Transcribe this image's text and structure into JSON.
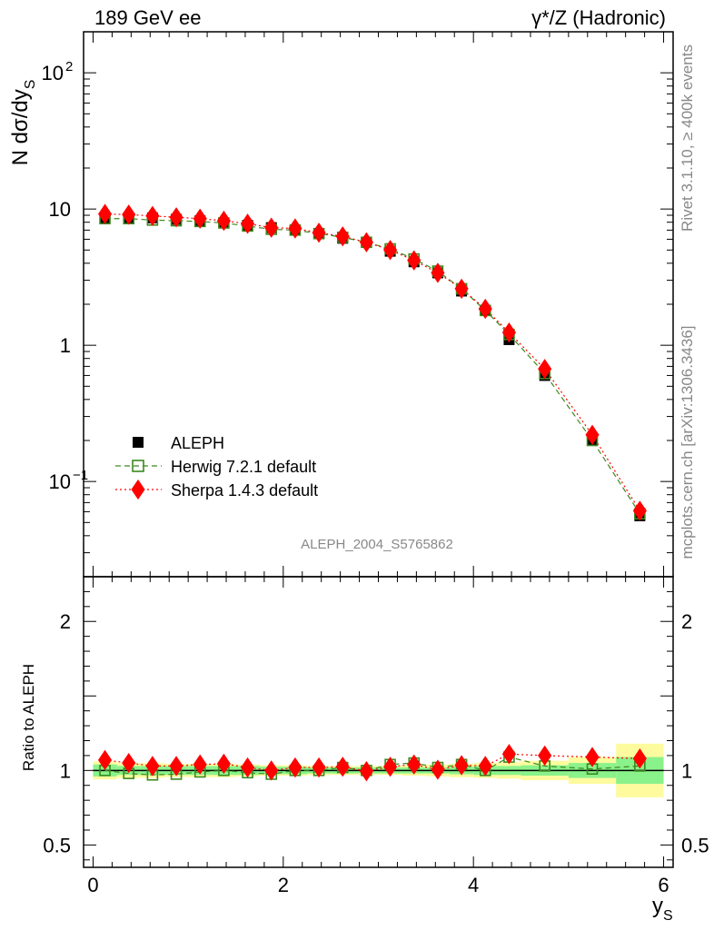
{
  "header": {
    "left_label": "189 GeV ee",
    "right_label": "γ*/Z (Hadronic)"
  },
  "side": {
    "version_text": "Rivet 3.1.10, ≥ 400k events",
    "source_text": "mcplots.cern.ch [arXiv:1306.3436]"
  },
  "watermark": "ALEPH_2004_S5765862",
  "chart_data": [
    {
      "type": "scatter",
      "panel": "main",
      "ylabel": "N dσ/dy_S",
      "yscale": "log",
      "ylim": [
        0.02,
        200
      ],
      "xlim": [
        -0.1,
        6.1
      ],
      "ytick_labels": [
        "10^-1",
        "1",
        "10",
        "10^2"
      ],
      "x": [
        0.125,
        0.375,
        0.625,
        0.875,
        1.125,
        1.375,
        1.625,
        1.875,
        2.125,
        2.375,
        2.625,
        2.875,
        3.125,
        3.375,
        3.625,
        3.875,
        4.125,
        4.375,
        4.75,
        5.25,
        5.75
      ],
      "series": [
        {
          "name": "ALEPH",
          "marker": "square",
          "color": "#000000",
          "values": [
            8.5,
            8.6,
            8.6,
            8.4,
            8.2,
            7.9,
            7.6,
            7.3,
            7.0,
            6.6,
            6.1,
            5.7,
            4.9,
            4.1,
            3.4,
            2.5,
            1.8,
            1.1,
            0.6,
            0.2,
            0.056
          ]
        },
        {
          "name": "Herwig 7.2.1 default",
          "marker": "open-square",
          "color": "#3a8a1e",
          "line": "dashed",
          "values": [
            8.5,
            8.5,
            8.3,
            8.2,
            8.1,
            7.9,
            7.5,
            7.1,
            7.0,
            6.6,
            6.2,
            5.7,
            5.1,
            4.3,
            3.5,
            2.6,
            1.8,
            1.2,
            0.62,
            0.2,
            0.058
          ]
        },
        {
          "name": "Sherpa 1.4.3 default",
          "marker": "diamond",
          "color": "#ff0000",
          "line": "dotted",
          "values": [
            9.2,
            9.1,
            8.9,
            8.7,
            8.5,
            8.2,
            7.8,
            7.3,
            7.2,
            6.7,
            6.3,
            5.7,
            5.0,
            4.2,
            3.4,
            2.6,
            1.85,
            1.24,
            0.67,
            0.22,
            0.061
          ]
        }
      ],
      "legend": {
        "placement": "bottom-left"
      }
    },
    {
      "type": "scatter",
      "panel": "ratio",
      "ylabel": "Ratio to ALEPH",
      "xlabel": "y_S",
      "ylim": [
        0.35,
        2.3
      ],
      "xlim": [
        -0.1,
        6.1
      ],
      "yticks": [
        0.5,
        1,
        2
      ],
      "ytick_labels": [
        "0.5",
        "1",
        "2"
      ],
      "xticks": [
        0,
        2,
        4,
        6
      ],
      "xtick_labels": [
        "0",
        "2",
        "4",
        "6"
      ],
      "bands": {
        "edges": [
          0,
          0.25,
          0.5,
          0.75,
          1.0,
          1.25,
          1.5,
          1.75,
          2.0,
          2.25,
          2.5,
          2.75,
          3.0,
          3.25,
          3.5,
          3.75,
          4.0,
          4.25,
          4.5,
          5.0,
          5.5,
          6.0
        ],
        "inner": [
          0.04,
          0.03,
          0.03,
          0.03,
          0.03,
          0.03,
          0.03,
          0.025,
          0.025,
          0.02,
          0.02,
          0.02,
          0.02,
          0.02,
          0.02,
          0.025,
          0.03,
          0.03,
          0.035,
          0.05,
          0.09
        ],
        "outer": [
          0.06,
          0.05,
          0.05,
          0.045,
          0.045,
          0.045,
          0.04,
          0.035,
          0.035,
          0.03,
          0.03,
          0.03,
          0.03,
          0.035,
          0.04,
          0.045,
          0.05,
          0.055,
          0.065,
          0.09,
          0.18
        ],
        "inner_color": "#8af28a",
        "outer_color": "#fdfb9e"
      },
      "series": [
        {
          "name": "Herwig 7.2.1 default",
          "marker": "open-square",
          "color": "#3a8a1e",
          "line": "dashed",
          "values": [
            1.0,
            0.98,
            0.97,
            0.975,
            0.99,
            1.0,
            0.985,
            0.975,
            1.0,
            1.0,
            1.02,
            1.0,
            1.04,
            1.05,
            1.02,
            1.04,
            1.0,
            1.09,
            1.03,
            1.01,
            1.03
          ]
        },
        {
          "name": "Sherpa 1.4.3 default",
          "marker": "diamond",
          "color": "#ff0000",
          "line": "dotted",
          "values": [
            1.07,
            1.05,
            1.03,
            1.03,
            1.04,
            1.045,
            1.02,
            1.0,
            1.02,
            1.02,
            1.025,
            0.995,
            1.025,
            1.04,
            1.005,
            1.035,
            1.03,
            1.11,
            1.1,
            1.09,
            1.08
          ]
        }
      ]
    }
  ]
}
